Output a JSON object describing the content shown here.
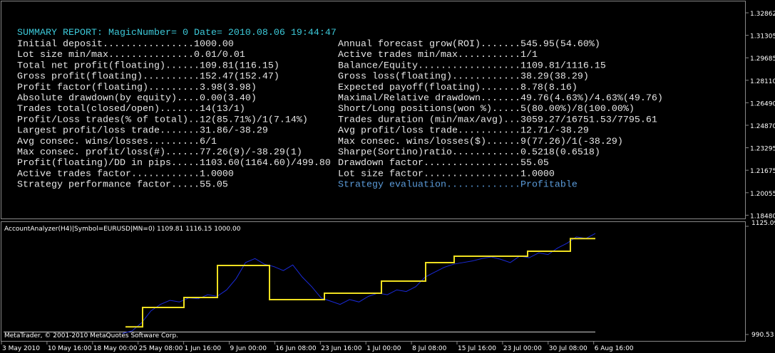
{
  "report": {
    "title": "SUMMARY REPORT: MagicNumber= 0 Date= 2010.08.06 19:44:47",
    "left": [
      "Initial deposit................1000.00",
      "Lot size min/max...............0.01/0.01",
      "Total net profit(floating)......109.81(116.15)",
      "Gross profit(floating)..........152.47(152.47)",
      "Profit factor(floating).........3.98(3.98)",
      "Absolute drawdown(by equity)....0.00(3.40)",
      "Trades total(closed/open).......14(13/1)",
      "Profit/Loss trades(% of total)..12(85.71%)/1(7.14%)",
      "Largest profit/loss trade.......31.86/-38.29",
      "Avg consec. wins/losses.........6/1",
      "Max consec. profit/loss(#)......77.26(9)/-38.29(1)",
      "Profit(floating)/DD in pips.....1103.60(1164.60)/499.80",
      "Active trades factor............1.0000",
      "Strategy performance factor.....55.05"
    ],
    "right": [
      "Annual forecast grow(ROI).......545.95(54.60%)",
      "Active trades min/max...........1/1",
      "Balance/Equity..................1109.81/1116.15",
      "Gross loss(floating)............38.29(38.29)",
      "Expected payoff(floating).......8.78(8.16)",
      "Maximal/Relative drawdown.......49.76(4.63%)/4.63%(49.76)",
      "Short/Long positions(won %).....5(80.00%)/8(100.00%)",
      "Trades duration (min/max/avg)...3059.27/16751.53/7795.61",
      "Avg profit/loss trade...........12.71/-38.29",
      "Max consec. wins/losses($)......9(77.26)/1(-38.29)",
      "Sharpe(Sortino)ratio............0.5218(0.6518)",
      "Drawdown factor.................55.05",
      "Lot size factor.................1.0000",
      "Strategy evaluation.............Profitable"
    ]
  },
  "price_axis": [
    "1.32862",
    "1.31305",
    "1.29685",
    "1.28110",
    "1.26490",
    "1.24870",
    "1.23295",
    "1.21675",
    "1.20055",
    "1.18480"
  ],
  "indicator": {
    "label": "AccountAnalyzer(H4)|Symbol=EURUSD|MN=0) 1109.81 1116.15 1000.00",
    "copyright": "MetaTrader, © 2001-2010 MetaQuotes Software Corp.",
    "yticks": [
      {
        "value": 1125.09,
        "label": "1125.09"
      },
      {
        "value": 990.53,
        "label": "990.53"
      }
    ],
    "balance": [
      1000,
      1024.2,
      1036.6,
      1076.4,
      1033.9,
      1041.9,
      1056.9,
      1079.9,
      1087.9,
      1094.1,
      1109.81
    ],
    "equity": [
      992,
      995,
      1005,
      1020,
      1028,
      1033,
      1031,
      1036,
      1035,
      1040,
      1038,
      1046,
      1060,
      1080,
      1085,
      1078,
      1075,
      1070,
      1077,
      1062,
      1050,
      1036,
      1032,
      1028,
      1034,
      1031,
      1038,
      1042,
      1040,
      1046,
      1044,
      1050,
      1062,
      1068,
      1074,
      1078,
      1080,
      1082,
      1085,
      1087,
      1084,
      1080,
      1088,
      1086,
      1092,
      1090,
      1098,
      1104,
      1112,
      1110,
      1116.15
    ]
  },
  "date_axis": [
    "3 May 2010",
    "10 May 16:00",
    "18 May 00:00",
    "25 May 08:00",
    "1 Jun 16:00",
    "9 Jun 00:00",
    "16 Jun 08:00",
    "23 Jun 16:00",
    "1 Jul 00:00",
    "8 Jul 08:00",
    "15 Jul 16:00",
    "23 Jul 00:00",
    "30 Jul 08:00",
    "6 Aug 16:00"
  ]
}
